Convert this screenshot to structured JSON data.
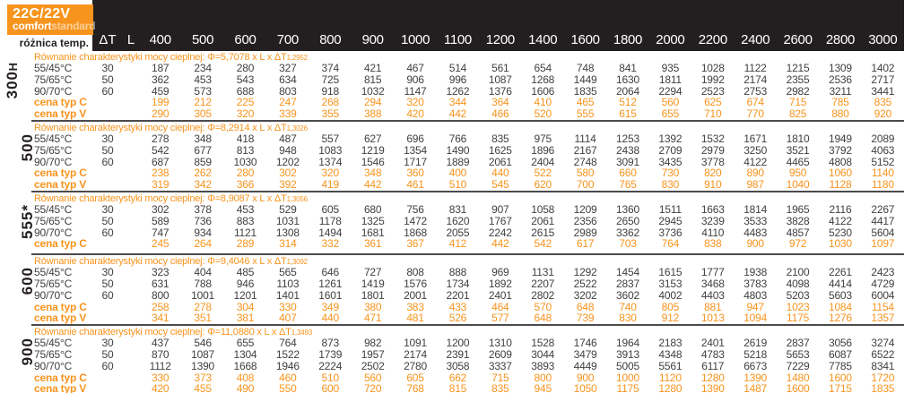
{
  "header": {
    "logo_title": "22C/22V",
    "logo_comfort": "comfort",
    "logo_standard": "standard",
    "diff_temp_label": "różnica temp.",
    "delta_t": "ΔT",
    "length_symbol": "L",
    "lengths": [
      "400",
      "500",
      "600",
      "700",
      "800",
      "900",
      "1000",
      "1100",
      "1200",
      "1400",
      "1600",
      "1800",
      "2000",
      "2200",
      "2400",
      "2600",
      "2800",
      "3000"
    ]
  },
  "colors": {
    "accent_orange": "#f7941e",
    "header_black": "#231f20",
    "text_dark": "#414042",
    "separator_gray": "#4b4b4d"
  },
  "groups": [
    {
      "height_prefix": "H",
      "size_label": "300",
      "equation": "Równanie charakterystyki mocy cieplnej: Φ=5,7078 x L x ΔT",
      "exponent": "1,2952",
      "rows": [
        {
          "kind": "output",
          "label": "55/45°C",
          "delta_t": "30",
          "values": [
            187,
            234,
            280,
            327,
            374,
            421,
            467,
            514,
            561,
            654,
            748,
            841,
            935,
            1028,
            1122,
            1215,
            1309,
            1402
          ]
        },
        {
          "kind": "output",
          "label": "75/65°C",
          "delta_t": "50",
          "values": [
            362,
            453,
            543,
            634,
            725,
            815,
            906,
            996,
            1087,
            1268,
            1449,
            1630,
            1811,
            1992,
            2174,
            2355,
            2536,
            2717
          ]
        },
        {
          "kind": "output",
          "label": "90/70°C",
          "delta_t": "60",
          "values": [
            459,
            573,
            688,
            803,
            918,
            1032,
            1147,
            1262,
            1376,
            1606,
            1835,
            2064,
            2294,
            2523,
            2753,
            2982,
            3211,
            3441
          ]
        },
        {
          "kind": "price",
          "label": "cena typ C",
          "delta_t": "",
          "values": [
            199,
            212,
            225,
            247,
            268,
            294,
            320,
            344,
            364,
            410,
            465,
            512,
            560,
            625,
            674,
            715,
            785,
            835
          ]
        },
        {
          "kind": "price",
          "label": "cena typ V",
          "delta_t": "",
          "values": [
            290,
            305,
            320,
            339,
            355,
            388,
            420,
            442,
            466,
            520,
            555,
            615,
            655,
            710,
            770,
            825,
            880,
            920
          ]
        }
      ]
    },
    {
      "height_prefix": "",
      "size_label": "500",
      "equation": "Równanie charakterystyki mocy cieplnej: Φ=8,2914 x L x ΔT",
      "exponent": "1,3026",
      "rows": [
        {
          "kind": "output",
          "label": "55/45°C",
          "delta_t": "30",
          "values": [
            278,
            348,
            418,
            487,
            557,
            627,
            696,
            766,
            835,
            975,
            1114,
            1253,
            1392,
            1532,
            1671,
            1810,
            1949,
            2089
          ]
        },
        {
          "kind": "output",
          "label": "75/65°C",
          "delta_t": "50",
          "values": [
            542,
            677,
            813,
            948,
            1083,
            1219,
            1354,
            1490,
            1625,
            1896,
            2167,
            2438,
            2709,
            2979,
            3250,
            3521,
            3792,
            4063
          ]
        },
        {
          "kind": "output",
          "label": "90/70°C",
          "delta_t": "60",
          "values": [
            687,
            859,
            1030,
            1202,
            1374,
            1546,
            1717,
            1889,
            2061,
            2404,
            2748,
            3091,
            3435,
            3778,
            4122,
            4465,
            4808,
            5152
          ]
        },
        {
          "kind": "price",
          "label": "cena typ C",
          "delta_t": "",
          "values": [
            238,
            262,
            280,
            302,
            320,
            348,
            360,
            400,
            440,
            522,
            580,
            660,
            730,
            820,
            890,
            950,
            1060,
            1140
          ]
        },
        {
          "kind": "price",
          "label": "cena typ V",
          "delta_t": "",
          "values": [
            319,
            342,
            366,
            392,
            419,
            442,
            461,
            510,
            545,
            620,
            700,
            765,
            830,
            910,
            987,
            1040,
            1128,
            1180
          ]
        }
      ]
    },
    {
      "height_prefix": "",
      "size_label": "555*",
      "equation": "Równanie charakterystyki mocy cieplnej: Φ=8,9087 x L x ΔT",
      "exponent": "1,3056",
      "extra_bottom_space": true,
      "rows": [
        {
          "kind": "output",
          "label": "55/45°C",
          "delta_t": "30",
          "values": [
            302,
            378,
            453,
            529,
            605,
            680,
            756,
            831,
            907,
            1058,
            1209,
            1360,
            1511,
            1663,
            1814,
            1965,
            2116,
            2267
          ]
        },
        {
          "kind": "output",
          "label": "75/65°C",
          "delta_t": "50",
          "values": [
            589,
            736,
            883,
            1031,
            1178,
            1325,
            1472,
            1620,
            1767,
            2061,
            2356,
            2650,
            2945,
            3239,
            3533,
            3828,
            4122,
            4417
          ]
        },
        {
          "kind": "output",
          "label": "90/70°C",
          "delta_t": "60",
          "values": [
            747,
            934,
            1121,
            1308,
            1494,
            1681,
            1868,
            2055,
            2242,
            2615,
            2989,
            3362,
            3736,
            4110,
            4483,
            4857,
            5230,
            5604
          ]
        },
        {
          "kind": "price",
          "label": "cena typ C",
          "delta_t": "",
          "values": [
            245,
            264,
            289,
            314,
            332,
            361,
            367,
            412,
            442,
            542,
            617,
            703,
            764,
            838,
            900,
            972,
            1030,
            1097
          ]
        }
      ]
    },
    {
      "height_prefix": "",
      "size_label": "600",
      "equation": "Równanie charakterystyki mocy cieplnej: Φ=9,4046 x L x ΔT",
      "exponent": "1,3092",
      "rows": [
        {
          "kind": "output",
          "label": "55/45°C",
          "delta_t": "30",
          "values": [
            323,
            404,
            485,
            565,
            646,
            727,
            808,
            888,
            969,
            1131,
            1292,
            1454,
            1615,
            1777,
            1938,
            2100,
            2261,
            2423
          ]
        },
        {
          "kind": "output",
          "label": "75/65°C",
          "delta_t": "50",
          "values": [
            631,
            788,
            946,
            1103,
            1261,
            1419,
            1576,
            1734,
            1892,
            2207,
            2522,
            2837,
            3153,
            3468,
            3783,
            4098,
            4414,
            4729
          ]
        },
        {
          "kind": "output",
          "label": "90/70°C",
          "delta_t": "60",
          "values": [
            800,
            1001,
            1201,
            1401,
            1601,
            1801,
            2001,
            2201,
            2401,
            2802,
            3202,
            3602,
            4002,
            4403,
            4803,
            5203,
            5603,
            6004
          ]
        },
        {
          "kind": "price",
          "label": "cena typ C",
          "delta_t": "",
          "values": [
            258,
            278,
            304,
            330,
            349,
            380,
            383,
            433,
            464,
            570,
            648,
            740,
            805,
            881,
            947,
            1023,
            1084,
            1154
          ]
        },
        {
          "kind": "price",
          "label": "cena typ V",
          "delta_t": "",
          "values": [
            341,
            351,
            381,
            407,
            440,
            471,
            481,
            526,
            577,
            648,
            739,
            830,
            912,
            1013,
            1094,
            1175,
            1276,
            1357
          ]
        }
      ]
    },
    {
      "height_prefix": "",
      "size_label": "900",
      "equation": "Równanie charakterystyki mocy cieplnej: Φ=11,0880 x L x ΔT",
      "exponent": "1,3493",
      "rows": [
        {
          "kind": "output",
          "label": "55/45°C",
          "delta_t": "30",
          "values": [
            437,
            546,
            655,
            764,
            873,
            982,
            1091,
            1200,
            1310,
            1528,
            1746,
            1964,
            2183,
            2401,
            2619,
            2837,
            3056,
            3274
          ]
        },
        {
          "kind": "output",
          "label": "75/65°C",
          "delta_t": "50",
          "values": [
            870,
            1087,
            1304,
            1522,
            1739,
            1957,
            2174,
            2391,
            2609,
            3044,
            3479,
            3913,
            4348,
            4783,
            5218,
            5653,
            6087,
            6522
          ]
        },
        {
          "kind": "output",
          "label": "90/70°C",
          "delta_t": "60",
          "values": [
            1112,
            1390,
            1668,
            1946,
            2224,
            2502,
            2780,
            3058,
            3337,
            3893,
            4449,
            5005,
            5561,
            6117,
            6673,
            7229,
            7785,
            8341
          ]
        },
        {
          "kind": "price",
          "label": "cena typ C",
          "delta_t": "",
          "values": [
            330,
            373,
            408,
            460,
            510,
            560,
            605,
            662,
            715,
            800,
            900,
            1000,
            1120,
            1280,
            1390,
            1480,
            1600,
            1720
          ]
        },
        {
          "kind": "price",
          "label": "cena typ V",
          "delta_t": "",
          "values": [
            420,
            455,
            490,
            550,
            600,
            720,
            768,
            815,
            835,
            945,
            1050,
            1175,
            1280,
            1390,
            1487,
            1600,
            1715,
            1835
          ]
        }
      ]
    }
  ]
}
